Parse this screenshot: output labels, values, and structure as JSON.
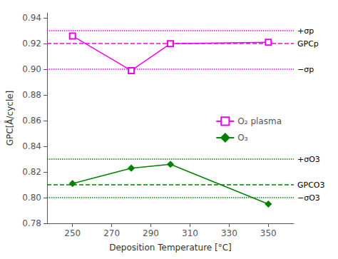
{
  "chart_data": {
    "type": "line",
    "xlabel": "Deposition Temperature [°C]",
    "ylabel": "GPC[Å/cycle]",
    "x": [
      250,
      280,
      300,
      350
    ],
    "series": [
      {
        "name": "O₂ plasma",
        "color": "#EE00EE",
        "marker": "open-square",
        "values": [
          0.926,
          0.899,
          0.92,
          0.921
        ]
      },
      {
        "name": "O₃",
        "color": "#008000",
        "marker": "diamond",
        "values": [
          0.811,
          0.823,
          0.826,
          0.795
        ]
      }
    ],
    "hlines": [
      {
        "value": 0.9165,
        "color": "#EE00EE",
        "line_style": "dashed",
        "label": "GPCp"
      },
      {
        "value": 0.93,
        "color": "#EE00EE",
        "line_style": "dotted",
        "label": "+σp"
      },
      {
        "value": 0.903,
        "color": "#EE00EE",
        "line_style": "dotted",
        "label": "−σp"
      },
      {
        "value": 0.815,
        "color": "#008000",
        "line_style": "dashed",
        "label": "GPCO3"
      },
      {
        "value": 0.83,
        "color": "#008000",
        "line_style": "dotted",
        "label": "+σO3"
      },
      {
        "value": 0.8,
        "color": "#008000",
        "line_style": "dotted",
        "label": "−σO3"
      }
    ],
    "xlim": [
      237,
      363
    ],
    "xticks": [
      250,
      270,
      290,
      310,
      330,
      350
    ],
    "ylim": [
      0.78,
      0.944
    ],
    "yticks": [
      0.78,
      {
        "value": 0.8,
        "label": "0.80"
      },
      0.82,
      0.84,
      0.86,
      0.88,
      {
        "value": 0.9,
        "label": "0.90"
      },
      0.92,
      0.94
    ],
    "grid": false,
    "legend": "right"
  }
}
